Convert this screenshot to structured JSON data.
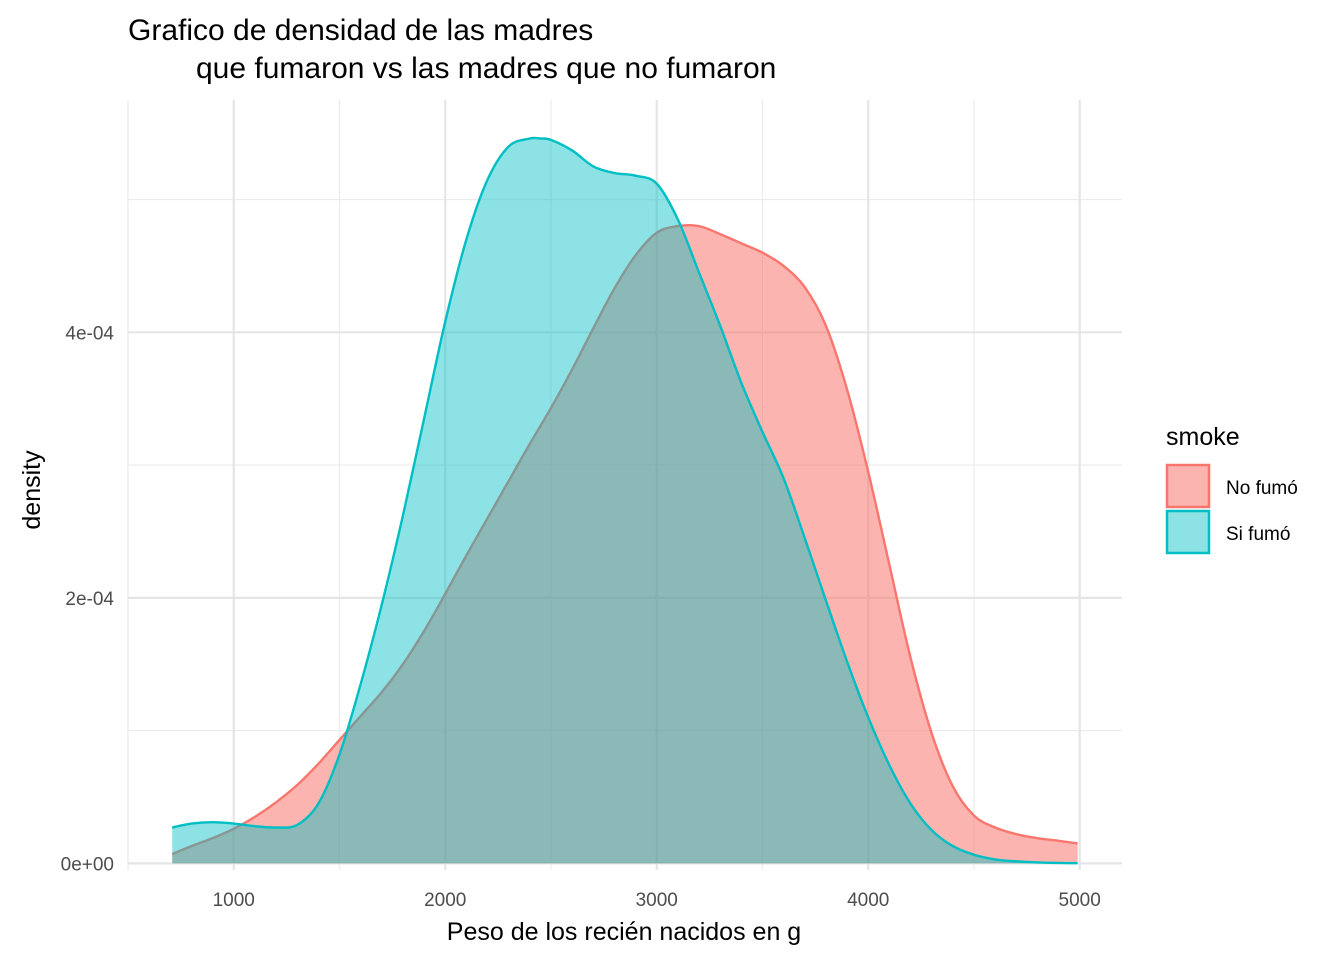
{
  "chart_data": {
    "type": "area",
    "subtype": "density",
    "title_line1": "Grafico de densidad de las madres",
    "title_line2": "que fumaron vs las madres que no fumaron",
    "xlabel": "Peso de los recién nacidos en g",
    "ylabel": "density",
    "xlim": [
      500,
      5200
    ],
    "ylim": [
      -5e-06,
      0.000575
    ],
    "x_ticks": [
      1000,
      2000,
      3000,
      4000,
      5000
    ],
    "x_tick_labels": [
      "1000",
      "2000",
      "3000",
      "4000",
      "5000"
    ],
    "x_minor_ticks": [
      500,
      1500,
      2500,
      3500,
      4500
    ],
    "y_ticks": [
      0,
      0.0002,
      0.0004
    ],
    "y_tick_labels": [
      "0e+00",
      "2e-04",
      "4e-04"
    ],
    "y_minor_ticks": [
      0.0001,
      0.0003,
      0.0005
    ],
    "grid": true,
    "legend_title": "smoke",
    "legend_position": "right",
    "series": [
      {
        "name": "No fumó",
        "color": "#F8766D",
        "x": [
          709,
          800,
          900,
          1000,
          1100,
          1200,
          1300,
          1400,
          1500,
          1600,
          1700,
          1800,
          1900,
          2000,
          2100,
          2200,
          2300,
          2400,
          2500,
          2600,
          2700,
          2800,
          2900,
          3000,
          3100,
          3200,
          3300,
          3400,
          3500,
          3600,
          3700,
          3800,
          3900,
          4000,
          4100,
          4200,
          4300,
          4400,
          4500,
          4600,
          4700,
          4800,
          4900,
          4990
        ],
        "y": [
          7e-06,
          1.3e-05,
          1.9e-05,
          2.6e-05,
          3.5e-05,
          4.6e-05,
          5.9e-05,
          7.5e-05,
          9.3e-05,
          0.000111,
          0.000129,
          0.00015,
          0.000175,
          0.000203,
          0.000232,
          0.00026,
          0.000288,
          0.000316,
          0.000343,
          0.000372,
          0.000403,
          0.000433,
          0.000458,
          0.000475,
          0.00048,
          0.00048,
          0.000474,
          0.000467,
          0.00046,
          0.00045,
          0.000434,
          0.000405,
          0.000357,
          0.000295,
          0.000225,
          0.000155,
          9.8e-05,
          5.8e-05,
          3.6e-05,
          2.7e-05,
          2.2e-05,
          1.9e-05,
          1.7e-05,
          1.5e-05
        ]
      },
      {
        "name": "Si fumó",
        "color": "#00BFC4",
        "x": [
          709,
          800,
          900,
          1000,
          1100,
          1200,
          1300,
          1400,
          1500,
          1600,
          1700,
          1800,
          1900,
          2000,
          2100,
          2200,
          2300,
          2400,
          2450,
          2500,
          2600,
          2700,
          2800,
          2900,
          3000,
          3100,
          3200,
          3300,
          3400,
          3500,
          3600,
          3700,
          3800,
          3900,
          4000,
          4100,
          4200,
          4300,
          4400,
          4500,
          4600,
          4700,
          4800,
          4900,
          4990
        ],
        "y": [
          2.7e-05,
          3e-05,
          3.1e-05,
          3e-05,
          2.8e-05,
          2.7e-05,
          2.9e-05,
          4.5e-05,
          8.2e-05,
          0.000135,
          0.000195,
          0.000262,
          0.000335,
          0.000408,
          0.00047,
          0.000515,
          0.00054,
          0.000546,
          0.000546,
          0.000545,
          0.000537,
          0.000525,
          0.00052,
          0.000518,
          0.000512,
          0.000485,
          0.000445,
          0.000405,
          0.000362,
          0.000325,
          0.00029,
          0.000245,
          0.000198,
          0.000152,
          0.00011,
          7.4e-05,
          4.5e-05,
          2.5e-05,
          1.3e-05,
          6.5e-06,
          3e-06,
          1.5e-06,
          7e-07,
          3e-07,
          1e-07
        ]
      }
    ]
  }
}
